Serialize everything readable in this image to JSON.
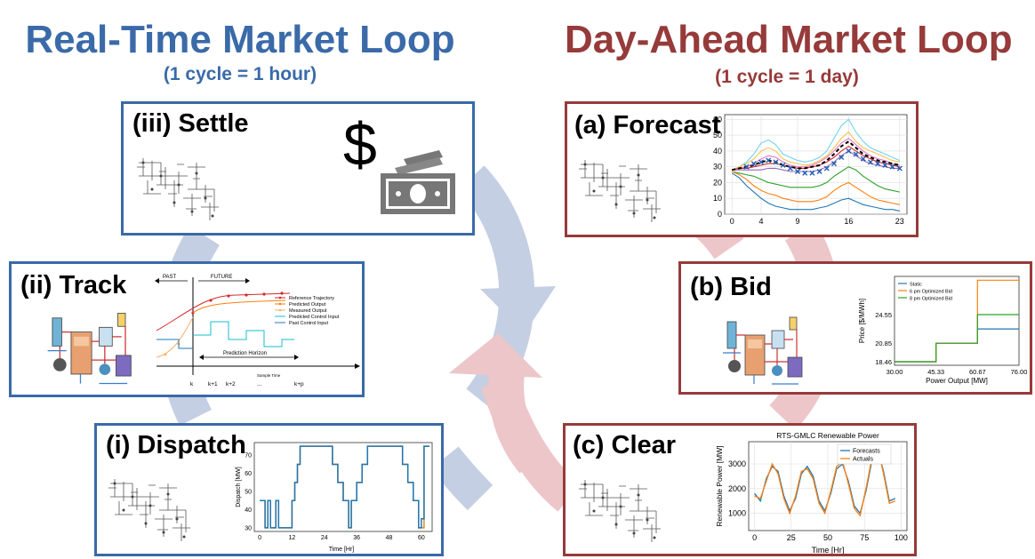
{
  "colors": {
    "rt_blue": "#3a6aa8",
    "da_red": "#963a3a",
    "arc_blue": "#c5cfe3",
    "arc_red": "#ecc6c9"
  },
  "left_loop": {
    "title": "Real-Time Market Loop",
    "subtitle": "(1 cycle = 1 hour)"
  },
  "right_loop": {
    "title": "Day-Ahead Market Loop",
    "subtitle": "(1 cycle = 1 day)"
  },
  "panels": {
    "settle": {
      "label": "(iii) Settle",
      "dollar": "$",
      "icons": [
        "grid-schematic-icon",
        "dollar-sign-icon",
        "banknotes-icon"
      ]
    },
    "track": {
      "label": "(ii) Track",
      "past": "PAST",
      "future": "FUTURE",
      "legend": [
        "Reference Trajectory",
        "Predicted Output",
        "Measured Output",
        "Predicted Control Input",
        "Past Control Input"
      ],
      "horizon": "Prediction Horizon",
      "sample_time": "Sample Time",
      "ticks": [
        "k",
        "k+1",
        "k+2",
        "...",
        "k+p"
      ]
    },
    "dispatch": {
      "label": "(i) Dispatch",
      "chart_data": {
        "type": "line",
        "ylabel": "Dispatch [MW]",
        "xlabel": "Time [Hr]",
        "xticks": [
          0,
          12,
          24,
          36,
          48,
          60
        ],
        "yticks": [
          30,
          40,
          50,
          60,
          70
        ],
        "xlim": [
          -2,
          64
        ],
        "ylim": [
          28,
          77
        ],
        "x": [
          0,
          2,
          2,
          3,
          3,
          4,
          4,
          6,
          6,
          7,
          7,
          12,
          12,
          13,
          13,
          14,
          14,
          15,
          15,
          17,
          17,
          27,
          27,
          29,
          29,
          31,
          31,
          33,
          33,
          34,
          34,
          36,
          36,
          38,
          38,
          40,
          40,
          41,
          41,
          43,
          43,
          53,
          53,
          55,
          55,
          57,
          57,
          59,
          59,
          60,
          60,
          61,
          61,
          62,
          62,
          63
        ],
        "series": [
          {
            "color": "#ee8a1b",
            "values": [
              45,
              45,
              30,
              30,
              45,
              45,
              30,
              30,
              45,
              45,
              30,
              30,
              45,
              45,
              55,
              55,
              65,
              65,
              75,
              75,
              75,
              75,
              65,
              65,
              55,
              55,
              45,
              45,
              30,
              30,
              45,
              45,
              55,
              55,
              65,
              65,
              75,
              75,
              75,
              75,
              75,
              75,
              65,
              65,
              55,
              55,
              45,
              45,
              30,
              30,
              30,
              30,
              75,
              75,
              75,
              75
            ]
          },
          {
            "color": "#1f77b4",
            "values": [
              45,
              45,
              30,
              30,
              45,
              45,
              30,
              30,
              45,
              45,
              30,
              30,
              45,
              45,
              55,
              55,
              65,
              65,
              75,
              75,
              75,
              75,
              65,
              65,
              55,
              55,
              45,
              45,
              30,
              30,
              45,
              45,
              55,
              55,
              65,
              65,
              75,
              75,
              75,
              75,
              75,
              75,
              65,
              65,
              55,
              55,
              45,
              45,
              30,
              30,
              35,
              35,
              75,
              75,
              75,
              75
            ]
          }
        ]
      }
    },
    "forecast": {
      "label": "(a) Forecast",
      "chart_data": {
        "type": "line",
        "xticks": [
          0,
          4,
          9,
          16,
          23
        ],
        "yticks": [
          0,
          10,
          20,
          30,
          40,
          50,
          60
        ],
        "xlim": [
          -1,
          24
        ],
        "ylim": [
          0,
          63
        ],
        "x": [
          0,
          1,
          2,
          3,
          4,
          5,
          6,
          7,
          8,
          9,
          10,
          11,
          12,
          13,
          14,
          15,
          16,
          17,
          18,
          19,
          20,
          21,
          22,
          23
        ],
        "series": [
          {
            "color": "#6fd3f2",
            "values": [
              28,
              30,
              33,
              38,
              45,
              47,
              44,
              38,
              36,
              34,
              33,
              34,
              36,
              40,
              48,
              56,
              60,
              52,
              46,
              42,
              40,
              38,
              36,
              34
            ]
          },
          {
            "color": "#f6c34a",
            "values": [
              28,
              30,
              32,
              35,
              40,
              42,
              40,
              35,
              33,
              32,
              31,
              32,
              34,
              37,
              42,
              48,
              52,
              46,
              42,
              40,
              38,
              36,
              34,
              33
            ]
          },
          {
            "color": "#e377c2",
            "values": [
              28,
              29,
              30,
              32,
              35,
              37,
              36,
              33,
              31,
              30,
              30,
              31,
              33,
              36,
              40,
              45,
              48,
              44,
              40,
              37,
              35,
              34,
              32,
              31
            ]
          },
          {
            "color": "#d62728",
            "values": [
              28,
              29,
              29,
              30,
              31,
              32,
              32,
              31,
              30,
              29,
              29,
              30,
              31,
              33,
              36,
              40,
              43,
              40,
              37,
              35,
              33,
              32,
              31,
              30
            ]
          },
          {
            "color": "#9467bd",
            "values": [
              28,
              28,
              28,
              28,
              28,
              29,
              29,
              28,
              27,
              27,
              27,
              27,
              28,
              30,
              33,
              37,
              40,
              37,
              34,
              32,
              31,
              30,
              29,
              29
            ]
          },
          {
            "color": "#000000",
            "dashed": true,
            "values": [
              28,
              29,
              30,
              31,
              33,
              34,
              33,
              31,
              30,
              29,
              29,
              30,
              31,
              34,
              38,
              43,
              46,
              42,
              38,
              36,
              34,
              33,
              32,
              31
            ]
          },
          {
            "color": "#2ca02c",
            "values": [
              27,
              26,
              25,
              24,
              22,
              20,
              19,
              18,
              17,
              17,
              17,
              17,
              18,
              20,
              24,
              27,
              30,
              28,
              24,
              21,
              18,
              16,
              15,
              14
            ]
          },
          {
            "color": "#ff7f0e",
            "values": [
              27,
              25,
              22,
              18,
              15,
              13,
              12,
              10,
              9,
              8,
              8,
              8,
              9,
              11,
              15,
              18,
              20,
              17,
              14,
              11,
              9,
              8,
              7,
              6
            ]
          },
          {
            "color": "#1f77b4",
            "values": [
              26,
              23,
              18,
              14,
              10,
              7,
              5,
              4,
              3,
              3,
              3,
              3,
              4,
              5,
              7,
              9,
              10,
              8,
              6,
              5,
              4,
              3,
              3,
              2
            ]
          }
        ],
        "markers": {
          "color": "#1f5fb4",
          "x": [
            2,
            3,
            4,
            5,
            6,
            7,
            8,
            9,
            10,
            11,
            12,
            13,
            14,
            15,
            16,
            17,
            18,
            19,
            20,
            21,
            22,
            23
          ],
          "values": [
            30,
            32,
            33,
            34,
            33,
            31,
            29,
            27,
            26,
            26,
            27,
            29,
            32,
            36,
            40,
            38,
            35,
            33,
            32,
            31,
            30,
            29
          ]
        }
      }
    },
    "bid": {
      "label": "(b) Bid",
      "chart_data": {
        "type": "line",
        "ylabel": "Price [$/MWh]",
        "xlabel": "Power Output [MW]",
        "xticks": [
          "30.00",
          "45.33",
          "60.67",
          "76.00"
        ],
        "yticks": [
          "18.46",
          "20.85",
          "24.55"
        ],
        "legend": [
          "Static",
          "6 pm Optimized Bid",
          "8 pm Optimized Bid"
        ],
        "series": [
          {
            "name": "Static",
            "color": "#1f77b4",
            "x": [
              30,
              45.33,
              45.33,
              60.67,
              60.67,
              76
            ],
            "values": [
              18.46,
              18.46,
              20.85,
              20.85,
              22.7,
              22.7
            ]
          },
          {
            "name": "6 pm Optimized Bid",
            "color": "#ff7f0e",
            "x": [
              30,
              45.33,
              45.33,
              60.67,
              60.67,
              76
            ],
            "values": [
              18.46,
              18.46,
              20.85,
              20.85,
              29.0,
              29.0
            ]
          },
          {
            "name": "8 pm Optimized Bid",
            "color": "#2ca02c",
            "x": [
              30,
              45.33,
              45.33,
              60.67,
              60.67,
              76
            ],
            "values": [
              18.46,
              18.46,
              20.85,
              20.85,
              24.55,
              24.55
            ]
          }
        ]
      }
    },
    "clear": {
      "label": "(c) Clear",
      "chart_data": {
        "type": "line",
        "title": "RTS-GMLC Renewable Power",
        "ylabel": "Renewable Power [MW]",
        "xlabel": "Time [Hr]",
        "xticks": [
          0,
          25,
          50,
          75,
          100
        ],
        "yticks": [
          1000,
          2000,
          3000
        ],
        "legend": [
          "Forecasts",
          "Actuals"
        ],
        "xlim": [
          -4,
          104
        ],
        "ylim": [
          300,
          3900
        ],
        "x": [
          0,
          4,
          8,
          12,
          16,
          20,
          24,
          28,
          32,
          36,
          40,
          44,
          48,
          52,
          56,
          60,
          64,
          68,
          72,
          76,
          80,
          84,
          88,
          92,
          96
        ],
        "series": [
          {
            "name": "Forecasts",
            "color": "#1f77b4",
            "values": [
              1800,
              1500,
              2400,
              2900,
              2700,
              1700,
              1100,
              1600,
              2600,
              2900,
              2500,
              1500,
              1100,
              1800,
              2800,
              3000,
              2300,
              1300,
              1000,
              1900,
              3100,
              3600,
              2700,
              1500,
              1600
            ]
          },
          {
            "name": "Actuals",
            "color": "#ff7f0e",
            "values": [
              1700,
              1600,
              2300,
              3000,
              2600,
              1600,
              1000,
              1700,
              2700,
              2800,
              2400,
              1400,
              1000,
              1900,
              2900,
              3100,
              2200,
              1200,
              900,
              2000,
              3200,
              3700,
              2600,
              1400,
              1500
            ]
          }
        ]
      }
    }
  }
}
